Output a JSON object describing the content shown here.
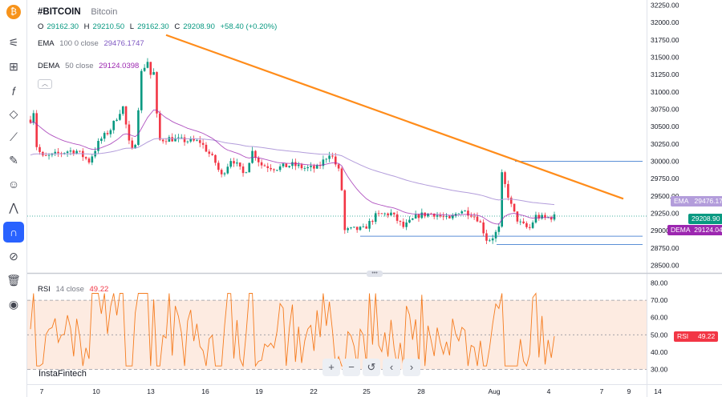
{
  "symbol": {
    "ticker": "#BITCOIN",
    "name": "Bitcoin"
  },
  "ohlc": {
    "o_label": "O",
    "o": "29162.30",
    "h_label": "H",
    "h": "29210.50",
    "l_label": "L",
    "l": "29162.30",
    "c_label": "C",
    "c": "29208.90",
    "change": "+58.40 (+0.20%)"
  },
  "indicators": {
    "ema": {
      "name": "EMA",
      "params": "100 0 close",
      "value": "29476.1747",
      "badge_label": "EMA",
      "badge_value": "29476.17",
      "color": "#7e57c2"
    },
    "dema": {
      "name": "DEMA",
      "params": "50 close",
      "value": "29124.0398",
      "badge_label": "DEMA",
      "badge_value": "29124.04",
      "color": "#9c27b0"
    },
    "rsi": {
      "name": "RSI",
      "params": "14 close",
      "value": "49.22",
      "badge_label": "RSI",
      "badge_value": "49.22",
      "color": "#f23645",
      "line_color": "#f57c1f"
    }
  },
  "price_badge": {
    "value": "29208.90",
    "color": "#089981"
  },
  "watermark": "InstaFintech",
  "toolbar": {
    "icons": [
      "bitcoin-logo-icon",
      "candlestick-icon",
      "bars-icon",
      "fx-icon",
      "drawing-line-icon",
      "trend-lines-icon",
      "brush-icon",
      "emoji-icon",
      "patterns-icon",
      "magnet-icon",
      "eye-off-icon",
      "trash-icon",
      "camera-icon"
    ],
    "glyphs": [
      "₿",
      "⚟",
      "⊞",
      "𝑓",
      "◇",
      "⟋",
      "✎",
      "☺",
      "⋀",
      "∩",
      "⊘",
      "🗑",
      "◉"
    ]
  },
  "zoom_controls": [
    "+",
    "−",
    "↺",
    "‹",
    "›"
  ],
  "colors": {
    "up": "#089981",
    "down": "#f23645",
    "trendline": "#ff8c1a",
    "level": "#5b8fd6",
    "ema": "#b39ddb",
    "rsi_band": "#fde8dc"
  },
  "chart_data": [
    {
      "type": "candlestick",
      "title": "#BITCOIN Bitcoin",
      "ylim": [
        28500,
        32250
      ],
      "y_ticks": [
        "32250.00",
        "32000.00",
        "31750.00",
        "31500.00",
        "31250.00",
        "31000.00",
        "30750.00",
        "30500.00",
        "30250.00",
        "30000.00",
        "29750.00",
        "29500.00",
        "29250.00",
        "29000.00",
        "28750.00",
        "28500.00"
      ],
      "x_ticks": [
        "7",
        "10",
        "13",
        "16",
        "19",
        "22",
        "25",
        "28",
        "Aug",
        "4",
        "7",
        "9",
        "14"
      ],
      "trendline": {
        "start": [
          "Jul 13",
          31820
        ],
        "end": [
          "Aug 5",
          29480
        ]
      },
      "levels": [
        30000,
        28920,
        28800
      ],
      "series": [
        {
          "name": "EMA",
          "values": "smooth declining curve from 30080 to 29476"
        },
        {
          "name": "DEMA",
          "values": "tracking curve ending at 29124"
        }
      ]
    },
    {
      "type": "line",
      "title": "RSI",
      "ylim": [
        30,
        80
      ],
      "y_ticks": [
        "80.00",
        "70.00",
        "60.00",
        "50.00",
        "40.00",
        "30.00"
      ],
      "bands": [
        30,
        70
      ],
      "last_value": 49.22
    }
  ]
}
